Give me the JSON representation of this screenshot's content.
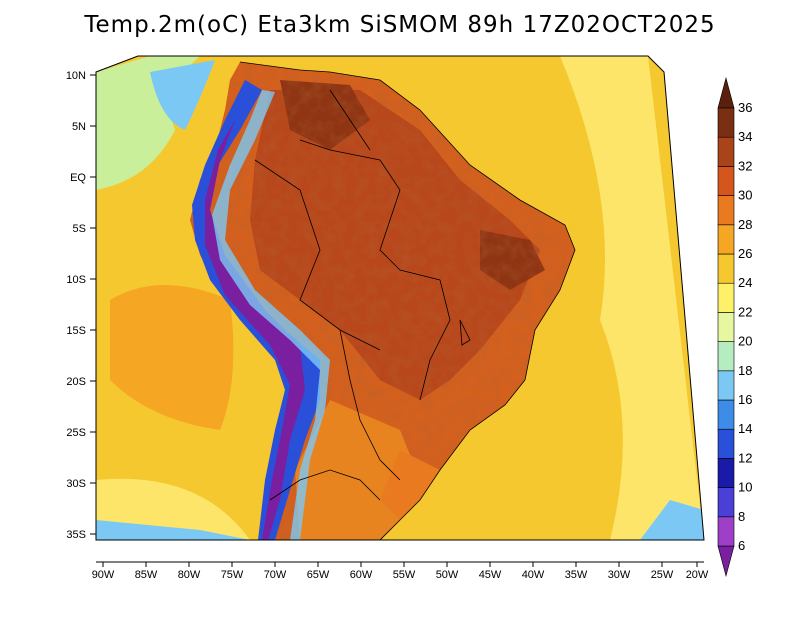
{
  "title": "Temp.2m(oC) Eta3km SiSMOM 89h 17Z02OCT2025",
  "lat_labels": [
    "10N",
    "5N",
    "EQ",
    "5S",
    "10S",
    "15S",
    "20S",
    "25S",
    "30S",
    "35S"
  ],
  "lon_labels": [
    "90W",
    "85W",
    "80W",
    "75W",
    "70W",
    "65W",
    "60W",
    "55W",
    "50W",
    "45W",
    "40W",
    "35W",
    "30W",
    "25W",
    "20W"
  ],
  "colorbar": {
    "levels": [
      "6",
      "8",
      "10",
      "12",
      "14",
      "16",
      "18",
      "20",
      "22",
      "24",
      "26",
      "28",
      "30",
      "32",
      "34",
      "36"
    ],
    "colors": [
      "#7a1fa0",
      "#9e3fc9",
      "#4a3fd6",
      "#1a1aa8",
      "#2a4fd8",
      "#3d8ce8",
      "#7cc8f5",
      "#b5ecc0",
      "#e6f7a0",
      "#fff06a",
      "#f5c830",
      "#f5a623",
      "#ea7a1f",
      "#d4561c",
      "#a8431a",
      "#7a2e12",
      "#5a200c"
    ]
  },
  "colors": {
    "land_hot": "#b8481c",
    "land_warm": "#d4601e",
    "land_orange": "#e8841f",
    "andes_cold": "#2a4fd8",
    "ocean_tropical": "#f5c830",
    "ocean_warm": "#f5a623",
    "ocean_cool": "#fff06a"
  }
}
